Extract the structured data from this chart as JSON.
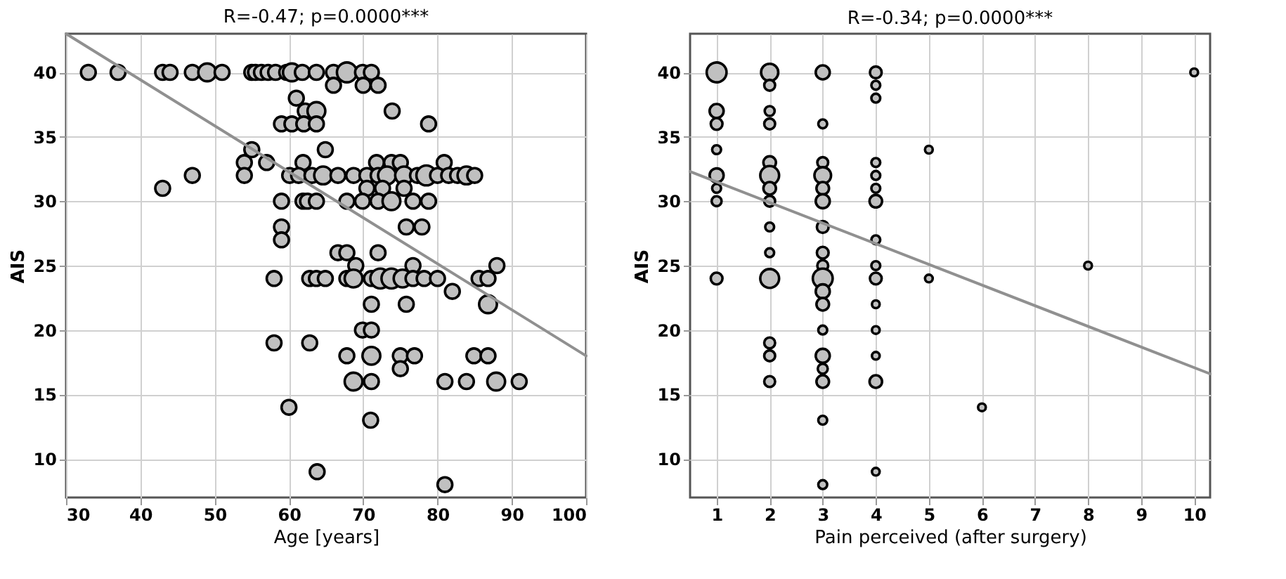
{
  "chart_data": [
    {
      "type": "bubble",
      "title": "R=-0.47; p=0.0000***",
      "xlabel": "Age [years]",
      "ylabel": "AIS",
      "xlim": [
        30,
        100
      ],
      "ylim": [
        7,
        43
      ],
      "xticks": [
        30,
        40,
        50,
        60,
        70,
        80,
        90,
        100
      ],
      "yticks": [
        10,
        15,
        20,
        25,
        30,
        35,
        40
      ],
      "grid": true,
      "series": [
        {
          "marker": "circle",
          "color": "#c0c0c0",
          "x": [
            33,
            37,
            43,
            44,
            47,
            49,
            51,
            55,
            55.5,
            56.3,
            57.2,
            58.2,
            59.7,
            60.4,
            61.8,
            63.7,
            66,
            67.8,
            69.9,
            71.1,
            66,
            70,
            72,
            61,
            62.2,
            63.7,
            73.9,
            59,
            60.4,
            62,
            63.7,
            78.8,
            55,
            64.9,
            54,
            57,
            61.9,
            71.8,
            73.8,
            75,
            80.9,
            47,
            54,
            60.1,
            61.3,
            63.1,
            64.6,
            66.6,
            68.7,
            70.5,
            72,
            73.2,
            75.5,
            77.3,
            78.5,
            80,
            81.5,
            82.7,
            83.9,
            85,
            43,
            70.5,
            72.6,
            75.5,
            59,
            61.9,
            62.5,
            63.7,
            67.8,
            69.9,
            72,
            73.8,
            76.7,
            78.8,
            59,
            75.8,
            77.9,
            59,
            66.6,
            67.8,
            72,
            69,
            76.7,
            88,
            58,
            62.8,
            63.7,
            64.9,
            67.8,
            68.7,
            71.1,
            72.3,
            73.8,
            75.3,
            76.7,
            78.2,
            80,
            85.6,
            86.8,
            82,
            71.1,
            75.8,
            86.8,
            69.9,
            71.1,
            58,
            62.8,
            67.8,
            71.1,
            75,
            76.9,
            84.9,
            86.8,
            75,
            68.7,
            71.1,
            81,
            83.9,
            87.9,
            91,
            60,
            71,
            63.8,
            81
          ],
          "values": [
            40,
            40,
            40,
            40,
            40,
            40,
            40,
            40,
            40,
            40,
            40,
            40,
            40,
            40,
            40,
            40,
            40,
            40,
            40,
            40,
            39,
            39,
            39,
            38,
            37,
            37,
            37,
            36,
            36,
            36,
            36,
            36,
            34,
            34,
            33,
            33,
            33,
            33,
            33,
            33,
            33,
            32,
            32,
            32,
            32,
            32,
            32,
            32,
            32,
            32,
            32,
            32,
            32,
            32,
            32,
            32,
            32,
            32,
            32,
            32,
            31,
            31,
            31,
            31,
            30,
            30,
            30,
            30,
            30,
            30,
            30,
            30,
            30,
            30,
            28,
            28,
            28,
            27,
            26,
            26,
            26,
            25,
            25,
            25,
            24,
            24,
            24,
            24,
            24,
            24,
            24,
            24,
            24,
            24,
            24,
            24,
            24,
            24,
            24,
            23,
            22,
            22,
            22,
            20,
            20,
            19,
            19,
            18,
            18,
            18,
            18,
            18,
            18,
            17,
            16,
            16,
            16,
            16,
            16,
            16,
            14,
            13,
            9,
            8
          ],
          "sizes": [
            0.55,
            0.55,
            0.55,
            0.55,
            0.55,
            0.8,
            0.55,
            0.55,
            0.55,
            0.55,
            0.55,
            0.55,
            0.55,
            0.8,
            0.55,
            0.55,
            0.55,
            1,
            0.55,
            0.55,
            0.55,
            0.55,
            0.55,
            0.55,
            0.55,
            0.8,
            0.55,
            0.55,
            0.55,
            0.55,
            0.55,
            0.55,
            0.55,
            0.55,
            0.55,
            0.55,
            0.55,
            0.55,
            0.55,
            0.55,
            0.55,
            0.55,
            0.55,
            0.55,
            0.55,
            0.55,
            0.8,
            0.55,
            0.55,
            0.55,
            0.55,
            0.8,
            0.8,
            0.55,
            1,
            0.55,
            0.55,
            0.55,
            0.8,
            0.55,
            0.55,
            0.55,
            0.55,
            0.55,
            0.55,
            0.55,
            0.55,
            0.55,
            0.55,
            0.55,
            0.55,
            0.8,
            0.55,
            0.55,
            0.55,
            0.55,
            0.55,
            0.55,
            0.55,
            0.55,
            0.55,
            0.55,
            0.55,
            0.55,
            0.55,
            0.55,
            0.55,
            0.55,
            0.55,
            0.8,
            0.55,
            1,
            1,
            0.8,
            0.55,
            0.55,
            0.55,
            0.55,
            0.55,
            0.55,
            0.55,
            0.55,
            0.8,
            0.55,
            0.55,
            0.55,
            0.55,
            0.55,
            0.8,
            0.55,
            0.55,
            0.55,
            0.55,
            0.55,
            0.8,
            0.55,
            0.55,
            0.55,
            0.8,
            0.55,
            0.55,
            0.55,
            0.55,
            0.55
          ]
        },
        {
          "type": "line",
          "color": "#909090",
          "x": [
            30,
            100
          ],
          "values": [
            43,
            18
          ]
        }
      ]
    },
    {
      "type": "bubble",
      "title": "R=-0.34; p=0.0000***",
      "xlabel": "Pain perceived (after surgery)",
      "ylabel": "AIS",
      "xlim": [
        0.5,
        10.3
      ],
      "ylim": [
        7,
        43
      ],
      "xticks": [
        1,
        2,
        3,
        4,
        5,
        6,
        7,
        8,
        9,
        10
      ],
      "yticks": [
        10,
        15,
        20,
        25,
        30,
        35,
        40
      ],
      "grid": true,
      "series": [
        {
          "marker": "circle",
          "color": "#c0c0c0",
          "x": [
            1,
            1,
            1,
            1,
            1,
            1,
            1,
            1,
            2,
            2,
            2,
            2,
            2,
            2,
            2,
            2,
            2,
            2,
            2,
            2,
            2,
            2,
            3,
            3,
            3,
            3,
            3,
            3,
            3,
            3,
            3,
            3,
            3,
            3,
            3,
            3,
            3,
            3,
            3,
            3,
            4,
            4,
            4,
            4,
            4,
            4,
            4,
            4,
            4,
            4,
            4,
            4,
            4,
            4,
            4,
            5,
            5,
            6,
            8,
            10
          ],
          "values": [
            40,
            37,
            36,
            34,
            32,
            31,
            30,
            24,
            40,
            39,
            37,
            36,
            33,
            32,
            30,
            28,
            26,
            24,
            19,
            18,
            16,
            31,
            40,
            36,
            33,
            32,
            31,
            30,
            28,
            26,
            25,
            24,
            23,
            22,
            20,
            18,
            17,
            16,
            13,
            8,
            40,
            39,
            38,
            33,
            32,
            31,
            30,
            27,
            25,
            24,
            22,
            20,
            18,
            16,
            9,
            34,
            24,
            14,
            25,
            40
          ],
          "sizes": [
            1,
            0.5,
            0.35,
            0.2,
            0.5,
            0.2,
            0.25,
            0.35,
            0.75,
            0.3,
            0.25,
            0.3,
            0.4,
            0.9,
            0.3,
            0.2,
            0.2,
            0.9,
            0.3,
            0.3,
            0.3,
            0.4,
            0.5,
            0.2,
            0.3,
            0.7,
            0.4,
            0.5,
            0.35,
            0.35,
            0.3,
            1,
            0.5,
            0.4,
            0.2,
            0.5,
            0.25,
            0.4,
            0.2,
            0.2,
            0.35,
            0.2,
            0.2,
            0.2,
            0.2,
            0.2,
            0.4,
            0.2,
            0.2,
            0.35,
            0.15,
            0.15,
            0.15,
            0.4,
            0.15,
            0.15,
            0.15,
            0.15,
            0.15,
            0.15
          ]
        },
        {
          "type": "line",
          "color": "#909090",
          "x": [
            0.5,
            10.3
          ],
          "values": [
            32.3,
            16.6
          ]
        }
      ]
    }
  ]
}
